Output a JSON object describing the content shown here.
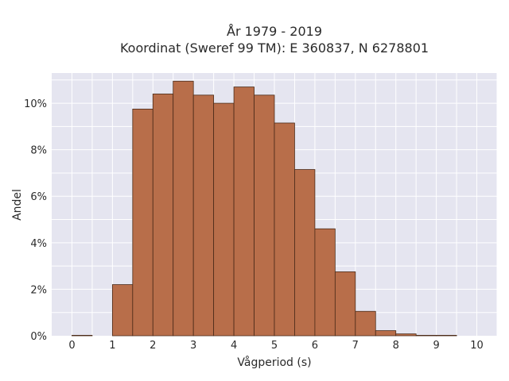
{
  "chart_data": {
    "type": "bar",
    "title_line1": "År 1979 - 2019",
    "title_line2": "Koordinat (Sweref 99 TM): E 360837, N 6278801",
    "xlabel": "Vågperiod (s)",
    "ylabel": "Andel",
    "xlim": [
      -0.5,
      10.5
    ],
    "ylim": [
      0,
      11.3
    ],
    "xticks": [
      0,
      1,
      2,
      3,
      4,
      5,
      6,
      7,
      8,
      9,
      10
    ],
    "yticks": [
      0,
      2,
      4,
      6,
      8,
      10
    ],
    "ytick_labels": [
      "0%",
      "2%",
      "4%",
      "6%",
      "8%",
      "10%"
    ],
    "bin_width": 0.5,
    "bins": [
      {
        "start": 0.0,
        "value": 0.02
      },
      {
        "start": 0.5,
        "value": 0.0
      },
      {
        "start": 1.0,
        "value": 2.2
      },
      {
        "start": 1.5,
        "value": 9.75
      },
      {
        "start": 2.0,
        "value": 10.4
      },
      {
        "start": 2.5,
        "value": 10.95
      },
      {
        "start": 3.0,
        "value": 10.35
      },
      {
        "start": 3.5,
        "value": 10.0
      },
      {
        "start": 4.0,
        "value": 10.7
      },
      {
        "start": 4.5,
        "value": 10.35
      },
      {
        "start": 5.0,
        "value": 9.15
      },
      {
        "start": 5.5,
        "value": 7.15
      },
      {
        "start": 6.0,
        "value": 4.6
      },
      {
        "start": 6.5,
        "value": 2.75
      },
      {
        "start": 7.0,
        "value": 1.05
      },
      {
        "start": 7.5,
        "value": 0.22
      },
      {
        "start": 8.0,
        "value": 0.08
      },
      {
        "start": 8.5,
        "value": 0.02
      },
      {
        "start": 9.0,
        "value": 0.02
      }
    ],
    "colors": {
      "bar": "#b86e4a",
      "bar_edge": "#4a2a18",
      "plot_bg": "#e5e5f0",
      "grid": "#ffffff"
    },
    "grid": true,
    "legend": "none"
  }
}
